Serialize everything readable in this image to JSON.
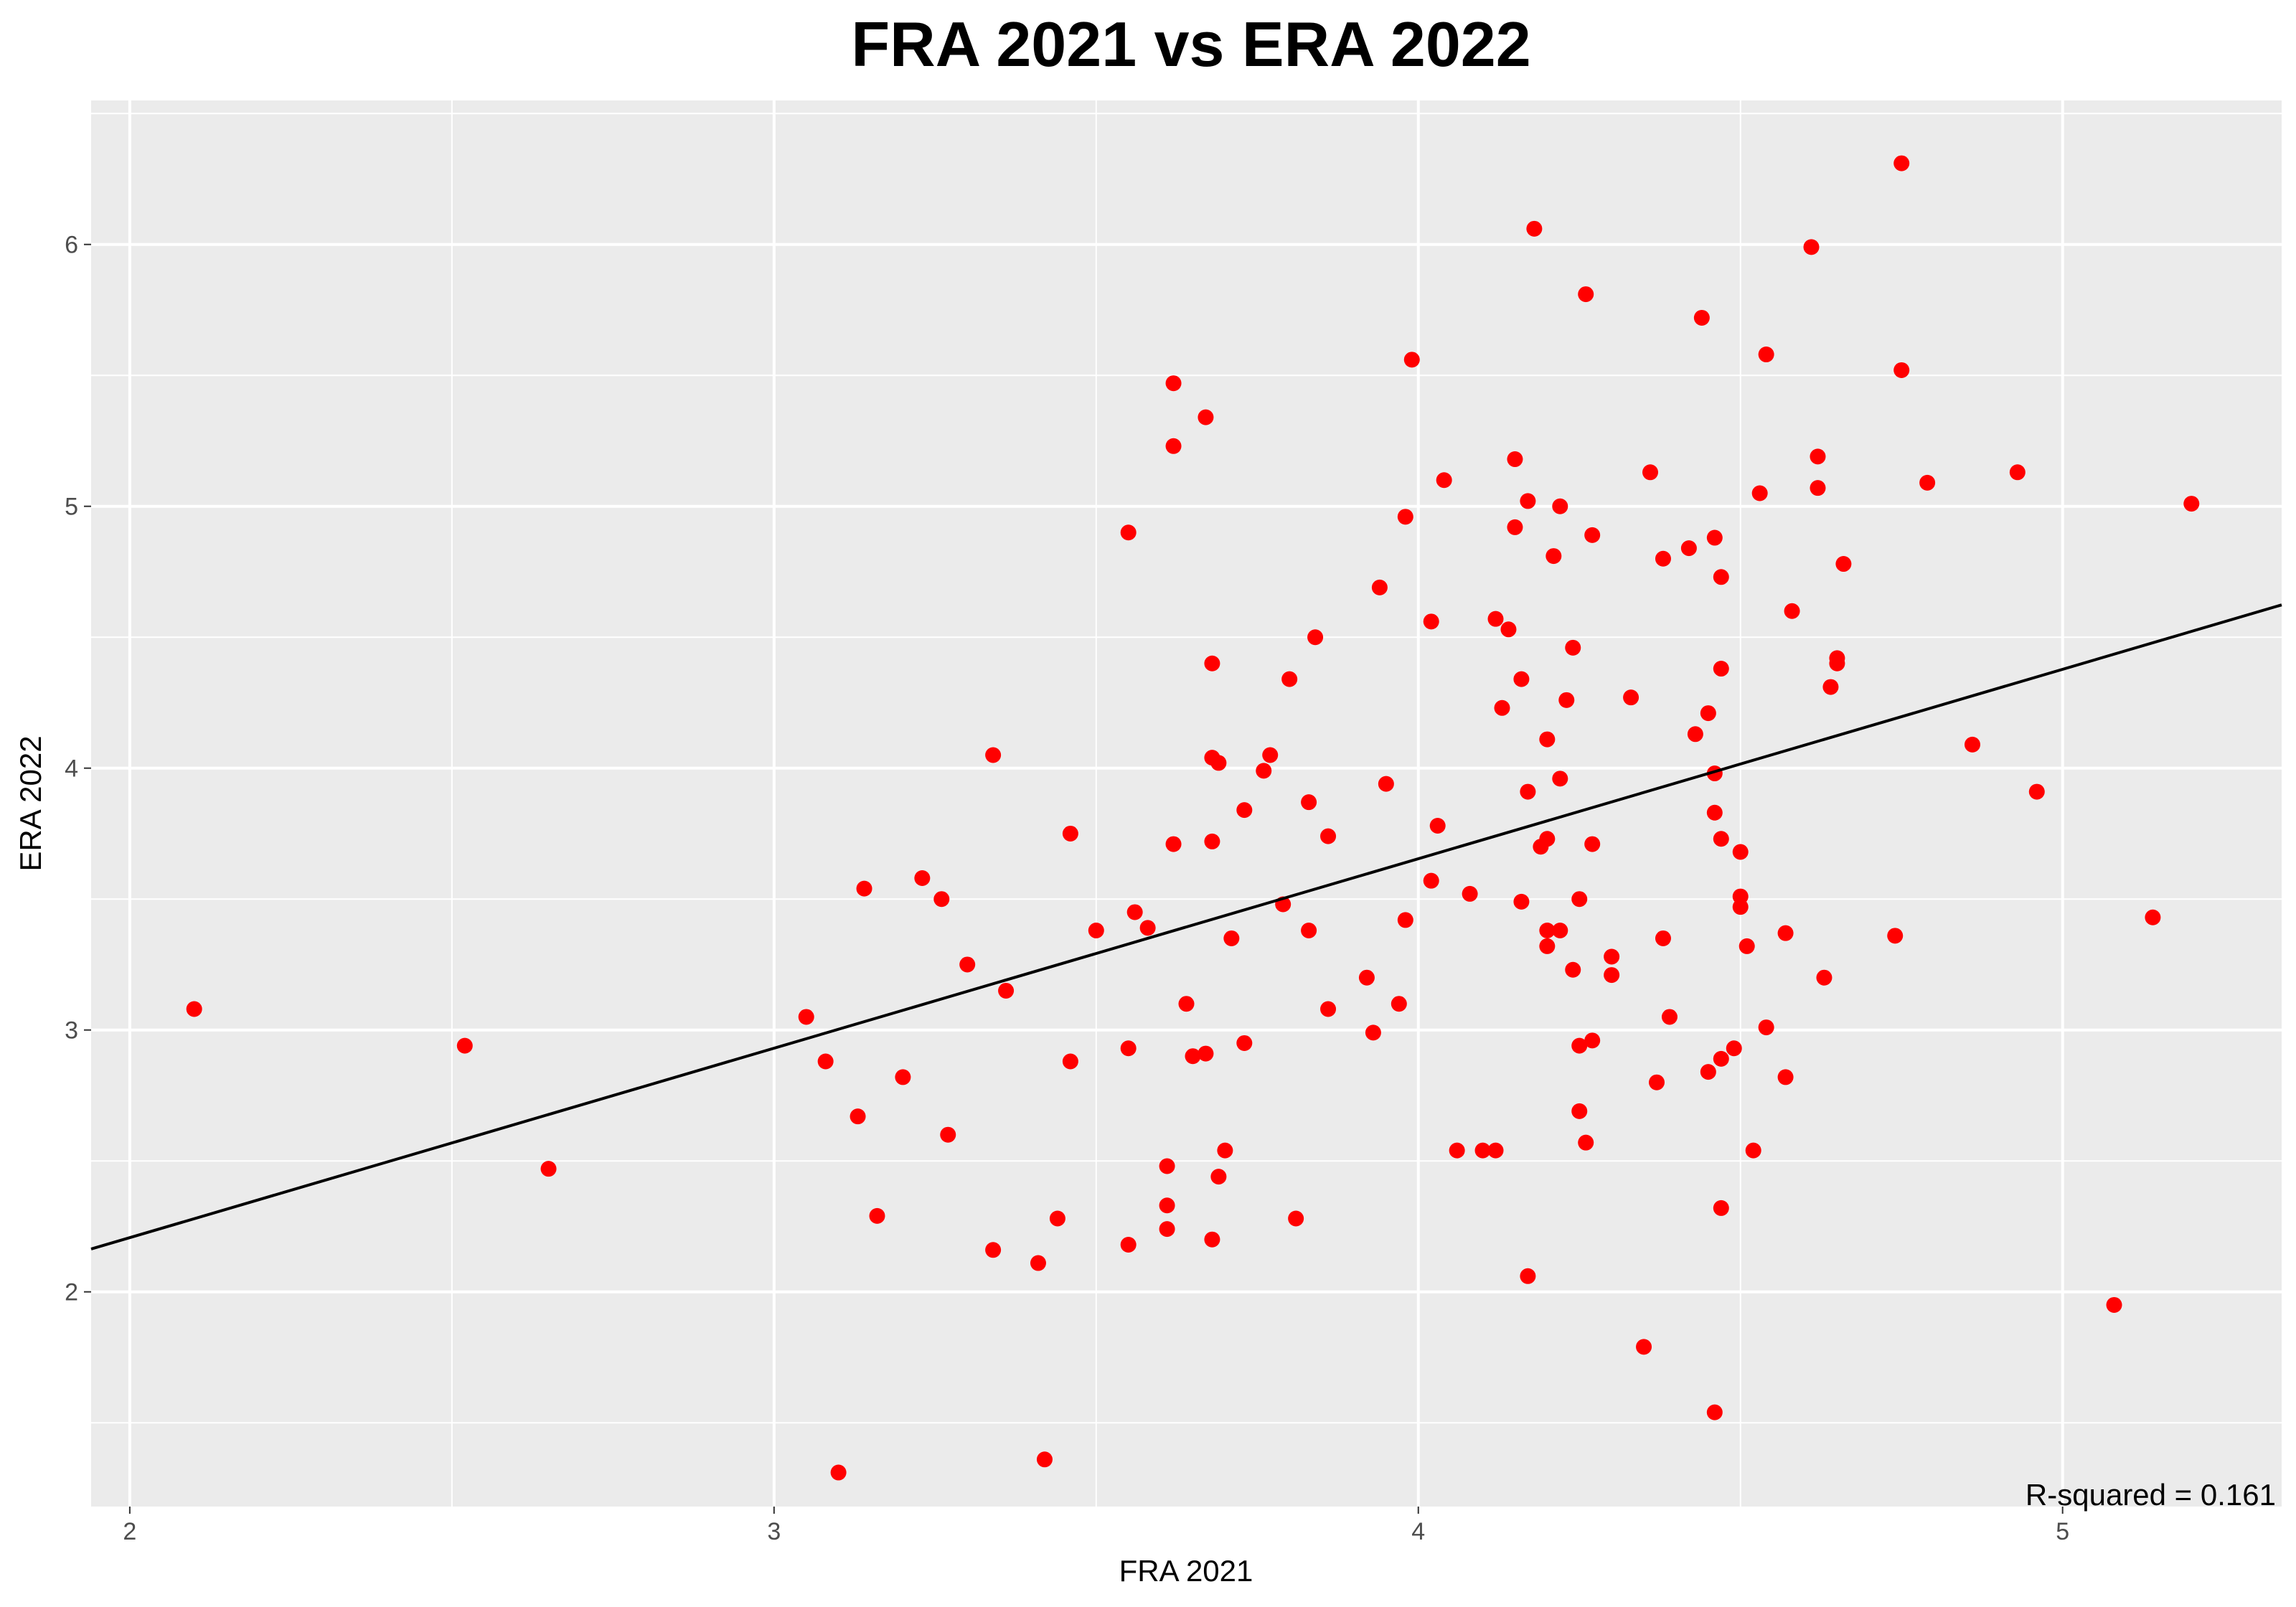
{
  "chart_data": {
    "type": "scatter",
    "title": "FRA 2021 vs ERA 2022",
    "xlabel": "FRA 2021",
    "ylabel": "ERA 2022",
    "xlim": [
      1.94,
      5.34
    ],
    "ylim": [
      1.18,
      6.55
    ],
    "x_ticks": [
      2,
      3,
      4,
      5
    ],
    "y_ticks": [
      2,
      3,
      4,
      5,
      6
    ],
    "grid": true,
    "point_color": "#ff0000",
    "line_color": "#000000",
    "panel_color": "#ebebeb",
    "annotation": "R-squared = 0.161",
    "regression": {
      "intercept": 0.76,
      "slope": 0.7235
    },
    "points": [
      [
        2.1,
        3.08
      ],
      [
        2.52,
        2.94
      ],
      [
        2.65,
        2.47
      ],
      [
        3.05,
        3.05
      ],
      [
        3.08,
        2.88
      ],
      [
        3.1,
        1.31
      ],
      [
        3.13,
        2.67
      ],
      [
        3.14,
        3.54
      ],
      [
        3.16,
        2.29
      ],
      [
        3.2,
        2.82
      ],
      [
        3.23,
        3.58
      ],
      [
        3.26,
        3.5
      ],
      [
        3.27,
        2.6
      ],
      [
        3.3,
        3.25
      ],
      [
        3.34,
        4.05
      ],
      [
        3.34,
        2.16
      ],
      [
        3.36,
        3.15
      ],
      [
        3.41,
        2.11
      ],
      [
        3.42,
        1.36
      ],
      [
        3.44,
        2.28
      ],
      [
        3.46,
        3.75
      ],
      [
        3.46,
        2.88
      ],
      [
        3.5,
        3.38
      ],
      [
        3.55,
        4.9
      ],
      [
        3.55,
        2.93
      ],
      [
        3.55,
        2.18
      ],
      [
        3.56,
        3.45
      ],
      [
        3.58,
        3.39
      ],
      [
        3.61,
        2.48
      ],
      [
        3.61,
        2.33
      ],
      [
        3.61,
        2.24
      ],
      [
        3.62,
        5.47
      ],
      [
        3.62,
        5.23
      ],
      [
        3.62,
        3.71
      ],
      [
        3.64,
        3.1
      ],
      [
        3.65,
        2.9
      ],
      [
        3.67,
        5.34
      ],
      [
        3.67,
        2.91
      ],
      [
        3.68,
        4.4
      ],
      [
        3.68,
        4.04
      ],
      [
        3.68,
        3.72
      ],
      [
        3.68,
        2.2
      ],
      [
        3.69,
        4.02
      ],
      [
        3.69,
        2.44
      ],
      [
        3.7,
        2.54
      ],
      [
        3.71,
        3.35
      ],
      [
        3.73,
        3.84
      ],
      [
        3.73,
        2.95
      ],
      [
        3.76,
        3.99
      ],
      [
        3.77,
        4.05
      ],
      [
        3.79,
        3.48
      ],
      [
        3.8,
        4.34
      ],
      [
        3.81,
        2.28
      ],
      [
        3.83,
        3.87
      ],
      [
        3.83,
        3.38
      ],
      [
        3.84,
        4.5
      ],
      [
        3.86,
        3.74
      ],
      [
        3.86,
        3.08
      ],
      [
        3.92,
        3.2
      ],
      [
        3.93,
        2.99
      ],
      [
        3.94,
        4.69
      ],
      [
        3.95,
        3.94
      ],
      [
        3.97,
        3.1
      ],
      [
        3.98,
        4.96
      ],
      [
        3.98,
        3.42
      ],
      [
        3.99,
        5.56
      ],
      [
        4.02,
        4.56
      ],
      [
        4.02,
        3.57
      ],
      [
        4.03,
        3.78
      ],
      [
        4.04,
        5.1
      ],
      [
        4.06,
        2.54
      ],
      [
        4.08,
        3.52
      ],
      [
        4.1,
        2.54
      ],
      [
        4.12,
        4.57
      ],
      [
        4.12,
        2.54
      ],
      [
        4.13,
        4.23
      ],
      [
        4.14,
        4.53
      ],
      [
        4.15,
        5.18
      ],
      [
        4.15,
        4.92
      ],
      [
        4.16,
        4.34
      ],
      [
        4.16,
        3.49
      ],
      [
        4.17,
        5.02
      ],
      [
        4.17,
        3.91
      ],
      [
        4.17,
        2.06
      ],
      [
        4.18,
        6.06
      ],
      [
        4.19,
        3.7
      ],
      [
        4.2,
        4.11
      ],
      [
        4.2,
        3.73
      ],
      [
        4.2,
        3.38
      ],
      [
        4.2,
        3.32
      ],
      [
        4.21,
        4.81
      ],
      [
        4.22,
        5.0
      ],
      [
        4.22,
        3.96
      ],
      [
        4.22,
        3.38
      ],
      [
        4.23,
        4.26
      ],
      [
        4.24,
        4.46
      ],
      [
        4.24,
        3.23
      ],
      [
        4.25,
        3.5
      ],
      [
        4.25,
        2.94
      ],
      [
        4.25,
        2.69
      ],
      [
        4.26,
        5.81
      ],
      [
        4.26,
        2.57
      ],
      [
        4.27,
        4.89
      ],
      [
        4.27,
        3.71
      ],
      [
        4.27,
        2.96
      ],
      [
        4.3,
        3.28
      ],
      [
        4.3,
        3.21
      ],
      [
        4.33,
        4.27
      ],
      [
        4.35,
        1.79
      ],
      [
        4.36,
        5.13
      ],
      [
        4.37,
        2.8
      ],
      [
        4.38,
        4.8
      ],
      [
        4.38,
        3.35
      ],
      [
        4.39,
        3.05
      ],
      [
        4.42,
        4.84
      ],
      [
        4.43,
        4.13
      ],
      [
        4.44,
        5.72
      ],
      [
        4.45,
        4.21
      ],
      [
        4.45,
        2.84
      ],
      [
        4.46,
        4.88
      ],
      [
        4.46,
        3.98
      ],
      [
        4.46,
        3.83
      ],
      [
        4.46,
        1.54
      ],
      [
        4.47,
        4.73
      ],
      [
        4.47,
        4.38
      ],
      [
        4.47,
        3.73
      ],
      [
        4.47,
        2.89
      ],
      [
        4.47,
        2.32
      ],
      [
        4.49,
        2.93
      ],
      [
        4.5,
        3.68
      ],
      [
        4.5,
        3.51
      ],
      [
        4.5,
        3.47
      ],
      [
        4.51,
        3.32
      ],
      [
        4.52,
        2.54
      ],
      [
        4.53,
        5.05
      ],
      [
        4.54,
        5.58
      ],
      [
        4.54,
        3.01
      ],
      [
        4.57,
        3.37
      ],
      [
        4.57,
        2.82
      ],
      [
        4.58,
        4.6
      ],
      [
        4.61,
        5.99
      ],
      [
        4.62,
        5.19
      ],
      [
        4.62,
        5.07
      ],
      [
        4.63,
        3.2
      ],
      [
        4.64,
        4.31
      ],
      [
        4.65,
        4.42
      ],
      [
        4.65,
        4.4
      ],
      [
        4.66,
        4.78
      ],
      [
        4.74,
        3.36
      ],
      [
        4.75,
        6.31
      ],
      [
        4.75,
        5.52
      ],
      [
        4.79,
        5.09
      ],
      [
        4.86,
        4.09
      ],
      [
        4.93,
        5.13
      ],
      [
        4.96,
        3.91
      ],
      [
        5.08,
        1.95
      ],
      [
        5.14,
        3.43
      ],
      [
        5.2,
        5.01
      ]
    ]
  }
}
